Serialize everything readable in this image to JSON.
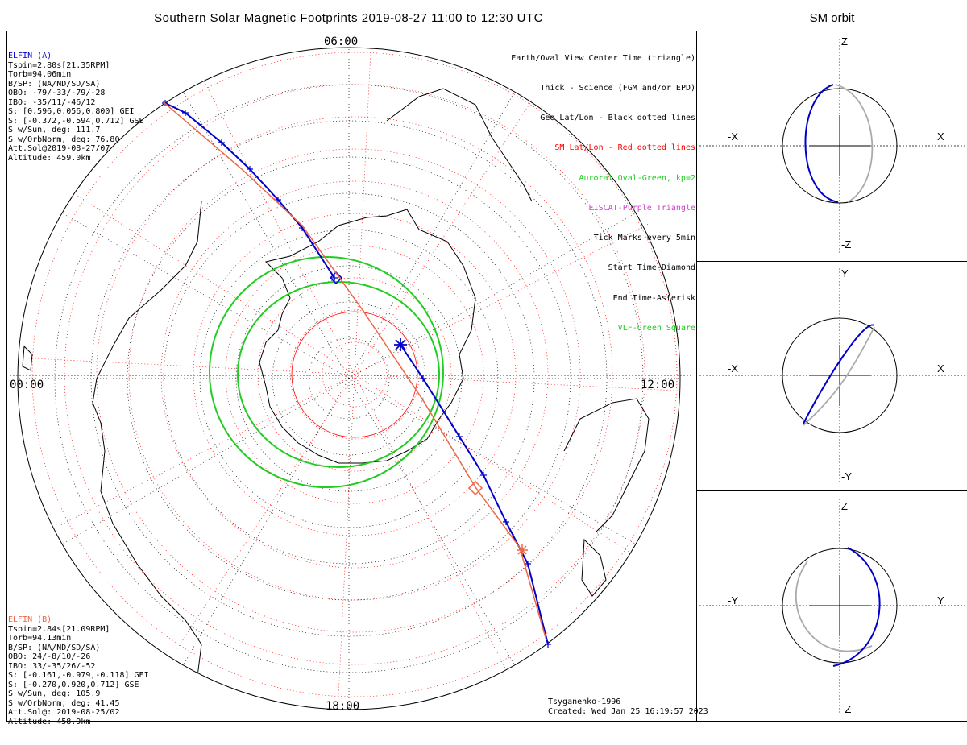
{
  "title": "Southern Solar Magnetic Footprints 2019-08-27 11:00 to 12:30 UTC",
  "orbit_title": "SM orbit",
  "time_labels": {
    "top": "06:00",
    "left": "00:00",
    "right": "12:00",
    "bottom": "18:00"
  },
  "elfin_a": {
    "name": "ELFIN (A)",
    "lines": [
      "Tspin=2.80s[21.35RPM]",
      "Torb=94.06min",
      "B/SP: (NA/ND/SD/SA)",
      "OBO: -79/-33/-79/-28",
      "IBO: -35/11/-46/12",
      "S: [0.596,0.056,0.800] GEI",
      "S: [-0.372,-0.594,0.712] GSE",
      "S w/Sun, deg: 111.7",
      "S w/OrbNorm, deg: 76.80",
      "Att.Sol@2019-08-27/07",
      "Altitude: 459.0km"
    ]
  },
  "elfin_b": {
    "name": "ELFIN (B)",
    "lines": [
      "Tspin=2.84s[21.09RPM]",
      "Torb=94.13min",
      "B/SP: (NA/ND/SD/SA)",
      "OBO: 24/-8/10/-26",
      "IBO: 33/-35/26/-52",
      "S: [-0.161,-0.979,-0.118] GEI",
      "S: [-0.270,0.920,0.712] GSE",
      "S w/Sun, deg: 105.9",
      "S w/OrbNorm, deg: 41.45",
      "Att.Sol@: 2019-08-25/02",
      "Altitude: 458.9km"
    ]
  },
  "legend": [
    {
      "text": "Earth/Oval View Center Time (triangle)",
      "color": "#000000"
    },
    {
      "text": "Thick - Science (FGM and/or EPD)",
      "color": "#000000"
    },
    {
      "text": "Geo Lat/Lon - Black dotted lines",
      "color": "#000000"
    },
    {
      "text": "SM Lat/Lon - Red dotted lines",
      "color": "#ff0000"
    },
    {
      "text": "Auroral Oval-Green, kp=2",
      "color": "#22cc22"
    },
    {
      "text": "EISCAT-Purple Triangle",
      "color": "#cc44cc"
    },
    {
      "text": "Tick Marks every 5min",
      "color": "#000000"
    },
    {
      "text": "Start Time-Diamond",
      "color": "#000000"
    },
    {
      "text": "End Time-Asterisk",
      "color": "#000000"
    },
    {
      "text": "VLF-Green Square",
      "color": "#22cc22"
    }
  ],
  "credit": [
    "Tsyganenko-1996",
    "Created: Wed Jan 25 16:19:57 2023"
  ],
  "panels": [
    {
      "top": "Z",
      "bottom": "-Z",
      "left": "-X",
      "right": "X"
    },
    {
      "top": "Y",
      "bottom": "-Y",
      "left": "-X",
      "right": "X"
    },
    {
      "top": "Z",
      "bottom": "-Z",
      "left": "-Y",
      "right": "Y"
    }
  ],
  "colors": {
    "elfin_a": "#0000cc",
    "elfin_b": "#ee6644",
    "oval": "#22cc22",
    "sm_grid": "#ff0000"
  }
}
